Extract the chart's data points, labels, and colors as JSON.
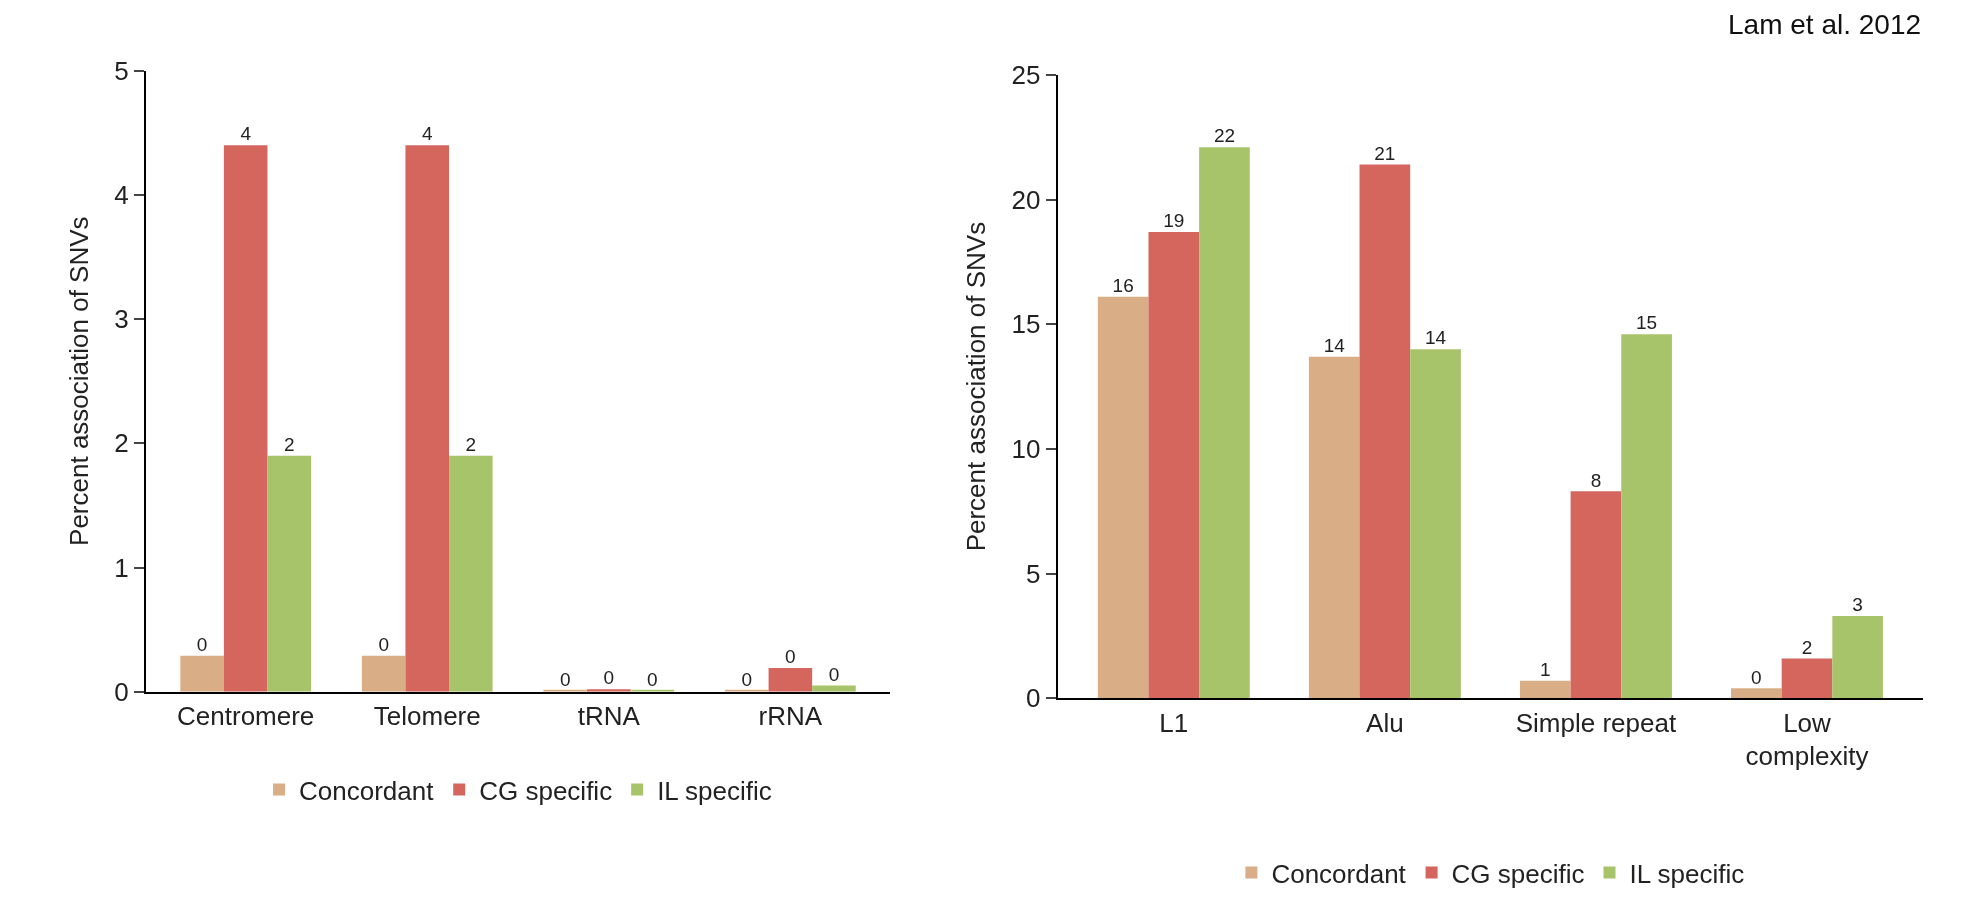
{
  "chart_data": [
    {
      "type": "bar",
      "ylabel": "Percent association of SNVs",
      "categories": [
        "Centromere",
        "Telomere",
        "tRNA",
        "rRNA"
      ],
      "series": [
        {
          "name": "Concordant",
          "color": "#d9ae87",
          "values": [
            0.29,
            0.29,
            0.01,
            0.01
          ],
          "value_labels": [
            "0",
            "0",
            "0",
            "0"
          ]
        },
        {
          "name": "CG specific",
          "color": "#d4665e",
          "values": [
            4.4,
            4.4,
            0.02,
            0.19
          ],
          "value_labels": [
            "4",
            "4",
            "0",
            "0"
          ]
        },
        {
          "name": "IL specific",
          "color": "#a8c46a",
          "values": [
            1.9,
            1.9,
            0.01,
            0.05
          ],
          "value_labels": [
            "2",
            "2",
            "0",
            "0"
          ]
        }
      ],
      "ylim": [
        0,
        5
      ],
      "yticks": [
        0,
        1,
        2,
        3,
        4,
        5
      ],
      "legend": "bottom"
    },
    {
      "type": "bar",
      "ylabel": "Percent association of SNVs",
      "categories": [
        "L1",
        "Alu",
        "Simple repeat",
        "Low\ncomplexity"
      ],
      "series": [
        {
          "name": "Concordant",
          "color": "#d9ae87",
          "values": [
            16.1,
            13.7,
            0.7,
            0.4
          ],
          "value_labels": [
            "16",
            "14",
            "1",
            "0"
          ]
        },
        {
          "name": "CG specific",
          "color": "#d4665e",
          "values": [
            18.7,
            21.4,
            8.3,
            1.6
          ],
          "value_labels": [
            "19",
            "21",
            "8",
            "2"
          ]
        },
        {
          "name": "IL specific",
          "color": "#a8c46a",
          "values": [
            22.1,
            14.0,
            14.6,
            3.3
          ],
          "value_labels": [
            "22",
            "14",
            "15",
            "3"
          ]
        }
      ],
      "ylim": [
        0,
        25
      ],
      "yticks": [
        0,
        5,
        10,
        15,
        20,
        25
      ],
      "legend": "bottom",
      "annotations": [
        "Lam et al. 2012"
      ]
    }
  ]
}
